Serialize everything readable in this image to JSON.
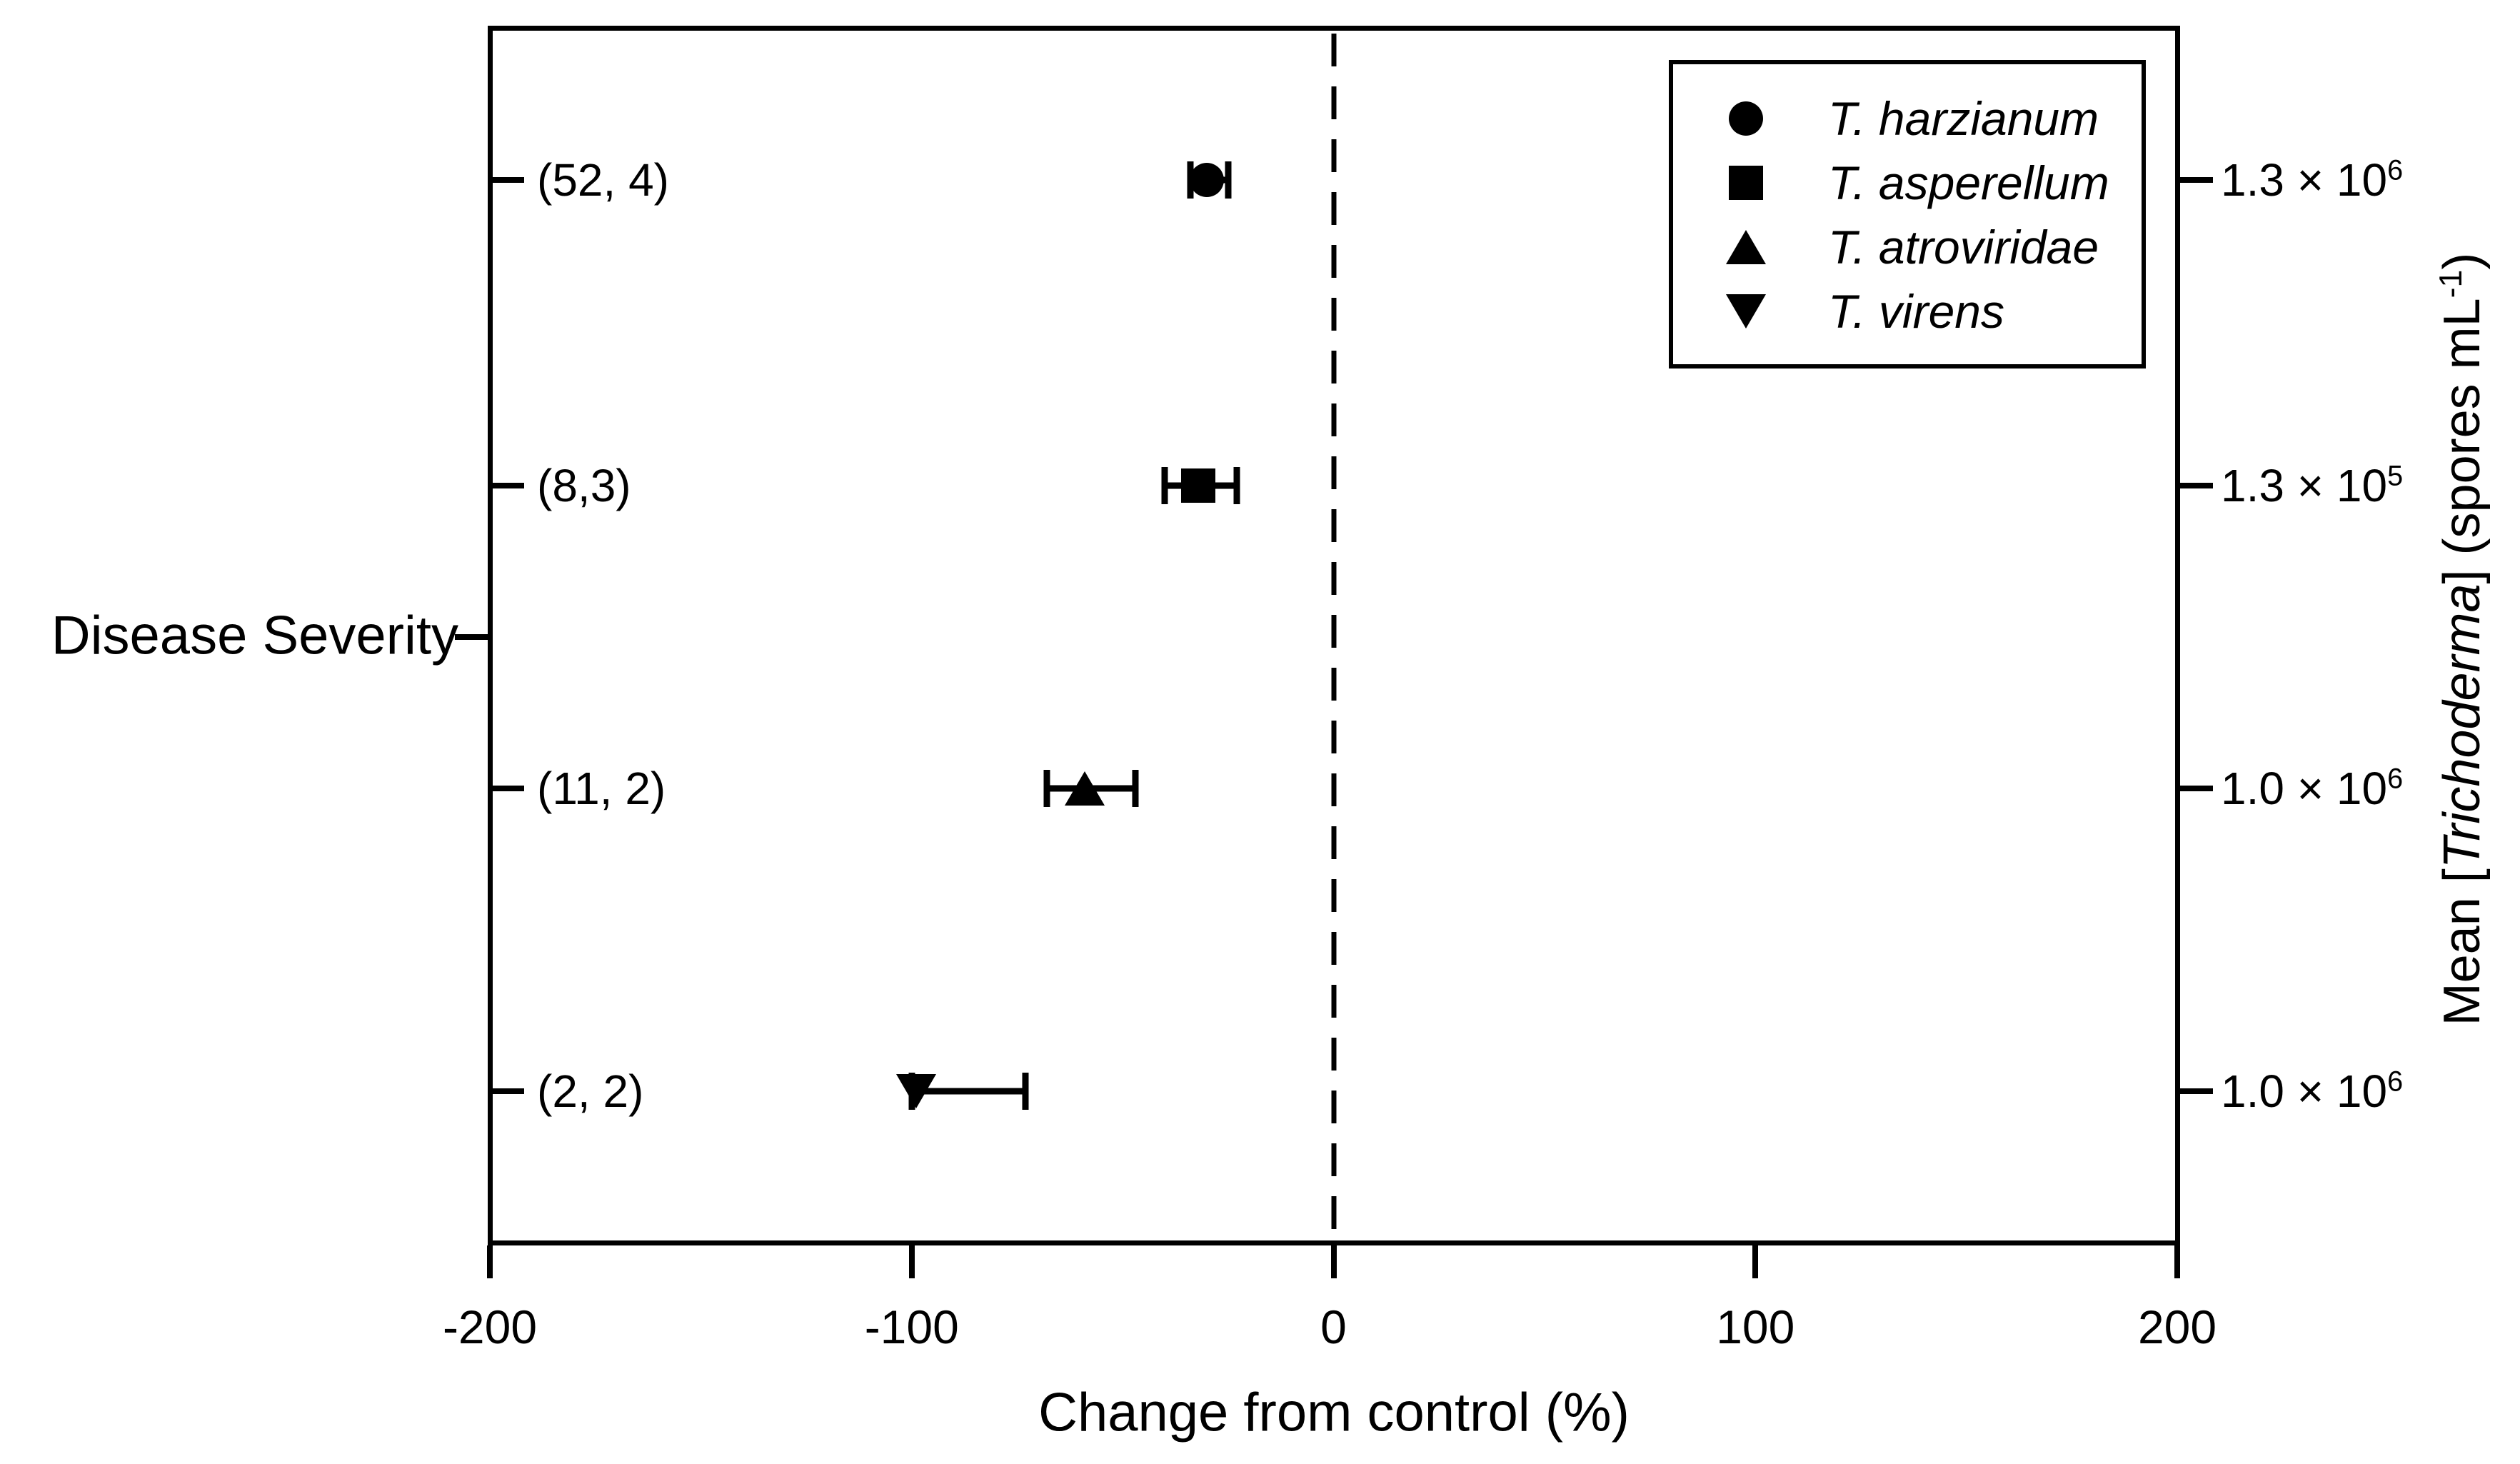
{
  "figure": {
    "background": "#ffffff",
    "ink": "#000000"
  },
  "axes": {
    "x": {
      "title": "Change from control (%)"
    },
    "y": {
      "title": "Disease Severity"
    },
    "y2": {
      "pre": "Mean [",
      "italic": "Trichoderma",
      "mid": "] (spores mL",
      "sup": "-1",
      "post": ")"
    }
  },
  "chart_data": {
    "type": "scatter",
    "subtype": "horizontal-point-with-error-bars",
    "title": "",
    "xlabel": "Change from control (%)",
    "ylabel": "Disease Severity",
    "y2label": "Mean [Trichoderma] (spores mL-1)",
    "xlim": [
      -200,
      200
    ],
    "x_ticks": [
      -200,
      -100,
      0,
      100,
      200
    ],
    "x_tick_labels": [
      "-200",
      "-100",
      "0",
      "100",
      "200"
    ],
    "reference_line_x": 0,
    "grid": false,
    "legend_position": "top-right",
    "series": [
      {
        "name": "T. harzianum",
        "marker": "circle",
        "x": -30,
        "ci": [
          -34,
          -25
        ],
        "n_label": "(52, 4)",
        "conc_base": "1.3 × 10",
        "conc_exp": "6"
      },
      {
        "name": "T. asperellum",
        "marker": "square",
        "x": -32,
        "ci": [
          -40,
          -23
        ],
        "n_label": "(8,3)",
        "conc_base": "1.3 × 10",
        "conc_exp": "5"
      },
      {
        "name": "T. atroviridae",
        "marker": "triangle-up",
        "x": -59,
        "ci": [
          -68,
          -47
        ],
        "n_label": "(11, 2)",
        "conc_base": "1.0 × 10",
        "conc_exp": "6"
      },
      {
        "name": "T. virens",
        "marker": "triangle-down",
        "x": -99,
        "ci": [
          -100,
          -73
        ],
        "n_label": "(2, 2)",
        "conc_base": "1.0 × 10",
        "conc_exp": "6"
      }
    ]
  }
}
